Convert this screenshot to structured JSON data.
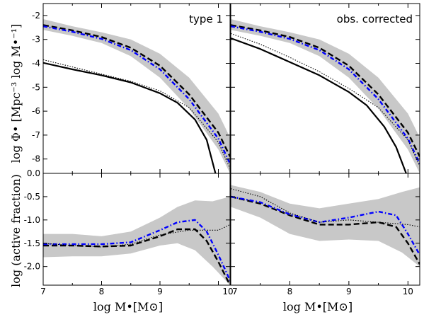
{
  "chart_data": {
    "type": "line",
    "x_axis": {
      "label": "log M•[M⊙]",
      "lim": [
        7,
        10.2
      ],
      "ticks": [
        7,
        8,
        9,
        10
      ]
    },
    "top_row": {
      "ylabel": "log Φ• [Mpc⁻³ log M•⁻¹]",
      "ylim": [
        -8.6,
        -1.5
      ],
      "yticks": [
        -2,
        -3,
        -4,
        -5,
        -6,
        -7,
        -8
      ],
      "ytick_labels": [
        "-2",
        "-3",
        "-4",
        "-5",
        "-6",
        "-7",
        "-8"
      ]
    },
    "bottom_row": {
      "ylabel": "log (active fraction)",
      "ylim": [
        -2.4,
        0.0
      ],
      "yticks": [
        0.0,
        -0.5,
        -1.0,
        -1.5,
        -2.0
      ],
      "ytick_labels": [
        "0.0",
        "-0.5",
        "-1.0",
        "-1.5",
        "-2.0"
      ]
    },
    "panels": [
      {
        "row": "top",
        "col": 0,
        "label": "type 1",
        "band": {
          "x": [
            7,
            7.5,
            8,
            8.5,
            9,
            9.5,
            10,
            10.2
          ],
          "lower": [
            -2.6,
            -2.85,
            -3.15,
            -3.7,
            -4.6,
            -5.9,
            -7.6,
            -8.6
          ],
          "upper": [
            -2.15,
            -2.45,
            -2.7,
            -3.0,
            -3.6,
            -4.6,
            -6.1,
            -7.1
          ]
        },
        "series": [
          {
            "style": "dash",
            "x": [
              7,
              7.5,
              8,
              8.5,
              9,
              9.5,
              10,
              10.2
            ],
            "y": [
              -2.4,
              -2.62,
              -2.9,
              -3.35,
              -4.1,
              -5.3,
              -6.9,
              -7.9
            ]
          },
          {
            "style": "dashdot",
            "x": [
              7,
              7.5,
              8,
              8.5,
              9,
              9.5,
              10,
              10.2
            ],
            "y": [
              -2.45,
              -2.68,
              -2.98,
              -3.45,
              -4.25,
              -5.5,
              -7.15,
              -8.2
            ]
          },
          {
            "style": "solid",
            "x": [
              7,
              7.5,
              8,
              8.5,
              9,
              9.3,
              9.6,
              9.8,
              9.95
            ],
            "y": [
              -3.98,
              -4.25,
              -4.5,
              -4.8,
              -5.25,
              -5.65,
              -6.35,
              -7.2,
              -8.6
            ]
          },
          {
            "style": "dotted",
            "x": [
              7,
              7.5,
              8,
              8.5,
              9,
              9.5,
              10,
              10.2
            ],
            "y": [
              -3.85,
              -4.15,
              -4.45,
              -4.75,
              -5.15,
              -5.85,
              -7.3,
              -8.4
            ]
          }
        ]
      },
      {
        "row": "top",
        "col": 1,
        "label": "obs. corrected",
        "band": {
          "x": [
            7,
            7.5,
            8,
            8.5,
            9,
            9.5,
            10,
            10.2
          ],
          "lower": [
            -2.6,
            -2.85,
            -3.15,
            -3.7,
            -4.6,
            -5.9,
            -7.6,
            -8.6
          ],
          "upper": [
            -2.15,
            -2.45,
            -2.7,
            -3.0,
            -3.6,
            -4.6,
            -6.1,
            -7.1
          ]
        },
        "series": [
          {
            "style": "dash",
            "x": [
              7,
              7.5,
              8,
              8.5,
              9,
              9.5,
              10,
              10.2
            ],
            "y": [
              -2.4,
              -2.62,
              -2.9,
              -3.35,
              -4.1,
              -5.3,
              -6.9,
              -7.9
            ]
          },
          {
            "style": "dashdot",
            "x": [
              7,
              7.5,
              8,
              8.5,
              9,
              9.5,
              10,
              10.2
            ],
            "y": [
              -2.45,
              -2.68,
              -2.98,
              -3.45,
              -4.25,
              -5.5,
              -7.15,
              -8.2
            ]
          },
          {
            "style": "solid",
            "x": [
              7,
              7.5,
              8,
              8.5,
              9,
              9.3,
              9.6,
              9.8,
              9.97
            ],
            "y": [
              -2.95,
              -3.4,
              -3.95,
              -4.5,
              -5.2,
              -5.75,
              -6.65,
              -7.5,
              -8.6
            ]
          },
          {
            "style": "dotted",
            "x": [
              7,
              7.5,
              8,
              8.5,
              9,
              9.5,
              10,
              10.2
            ],
            "y": [
              -2.75,
              -3.2,
              -3.75,
              -4.35,
              -5.05,
              -5.85,
              -7.2,
              -8.3
            ]
          }
        ]
      },
      {
        "row": "bottom",
        "col": 0,
        "label": "",
        "band": {
          "x": [
            7,
            7.5,
            8,
            8.5,
            9,
            9.3,
            9.6,
            9.9,
            10.2
          ],
          "lower": [
            -1.8,
            -1.78,
            -1.78,
            -1.72,
            -1.55,
            -1.5,
            -1.65,
            -2.0,
            -2.4
          ],
          "upper": [
            -1.3,
            -1.3,
            -1.35,
            -1.25,
            -0.95,
            -0.72,
            -0.58,
            -0.6,
            -0.5
          ]
        },
        "series": [
          {
            "style": "dash",
            "x": [
              7,
              7.5,
              8,
              8.5,
              9,
              9.3,
              9.6,
              9.8,
              10,
              10.2
            ],
            "y": [
              -1.55,
              -1.55,
              -1.57,
              -1.55,
              -1.35,
              -1.2,
              -1.2,
              -1.45,
              -1.9,
              -2.4
            ]
          },
          {
            "style": "dashdot",
            "x": [
              7,
              7.5,
              8,
              8.5,
              9,
              9.3,
              9.6,
              9.8,
              10,
              10.2
            ],
            "y": [
              -1.52,
              -1.52,
              -1.52,
              -1.48,
              -1.22,
              -1.05,
              -1.0,
              -1.25,
              -1.75,
              -2.3
            ]
          },
          {
            "style": "dotted",
            "x": [
              7,
              7.5,
              8,
              8.5,
              9,
              9.5,
              10,
              10.2
            ],
            "y": [
              -1.5,
              -1.55,
              -1.58,
              -1.52,
              -1.32,
              -1.22,
              -1.22,
              -1.1
            ]
          }
        ]
      },
      {
        "row": "bottom",
        "col": 1,
        "label": "",
        "band": {
          "x": [
            7,
            7.5,
            8,
            8.5,
            9,
            9.5,
            9.9,
            10.2
          ],
          "lower": [
            -0.72,
            -0.95,
            -1.3,
            -1.45,
            -1.42,
            -1.45,
            -1.7,
            -2.0
          ],
          "upper": [
            -0.25,
            -0.4,
            -0.65,
            -0.75,
            -0.65,
            -0.55,
            -0.4,
            -0.3
          ]
        },
        "series": [
          {
            "style": "dash",
            "x": [
              7,
              7.5,
              8,
              8.5,
              9,
              9.5,
              9.8,
              10,
              10.2
            ],
            "y": [
              -0.5,
              -0.65,
              -0.9,
              -1.1,
              -1.1,
              -1.05,
              -1.15,
              -1.5,
              -1.95
            ]
          },
          {
            "style": "dashdot",
            "x": [
              7,
              7.5,
              8,
              8.5,
              9,
              9.5,
              9.8,
              10,
              10.2
            ],
            "y": [
              -0.5,
              -0.62,
              -0.88,
              -1.05,
              -0.95,
              -0.82,
              -0.9,
              -1.3,
              -1.75
            ]
          },
          {
            "style": "dotted",
            "x": [
              7,
              7.5,
              8,
              8.5,
              9,
              9.5,
              10,
              10.2
            ],
            "y": [
              -0.33,
              -0.5,
              -0.85,
              -1.05,
              -1.0,
              -1.05,
              -1.1,
              -1.15
            ]
          }
        ]
      }
    ]
  },
  "colors": {
    "band": "#c8c8c8",
    "dash": "#000000",
    "dashdot": "#0000ff",
    "solid": "#000000",
    "dotted": "#000000"
  }
}
